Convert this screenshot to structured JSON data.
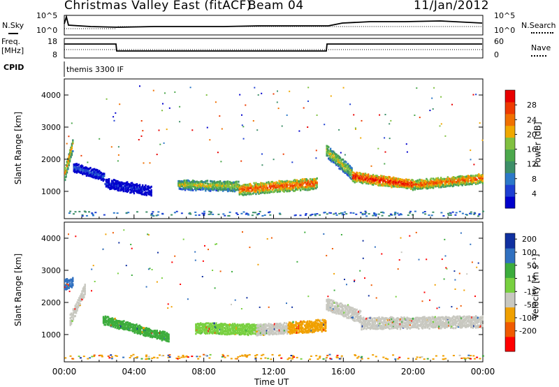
{
  "header": {
    "title": "Christmas Valley East (fitACF)",
    "beam": "Beam 04",
    "date": "11/Jan/2012"
  },
  "strips": {
    "nsky": {
      "label": "N.Sky",
      "ticks_left": [
        "10^5",
        "10^0"
      ],
      "ticks_right": [
        "10^5",
        "10^0"
      ],
      "right_label": "N.Search"
    },
    "freq": {
      "label_line1": "Freq.",
      "label_line2": "[MHz]",
      "ticks_left": [
        "18",
        "8"
      ],
      "ticks_right": [
        "60",
        "0"
      ],
      "right_label": "Nave"
    },
    "cpid": {
      "label": "CPID",
      "value": "themis 3300 IF"
    }
  },
  "chart_data": [
    {
      "type": "heatmap",
      "panel": "power",
      "ylabel": "Slant Range [km]",
      "ylim": [
        150,
        4500
      ],
      "yticks": [
        "4000",
        "3000",
        "2000",
        "1000"
      ],
      "xlim_hours": [
        0,
        24
      ],
      "colorbar": {
        "label": "Power [dB]",
        "ticks": [
          "28",
          "24",
          "20",
          "16",
          "12",
          "8",
          "4"
        ],
        "colors": [
          "#0000cc",
          "#1e3fd2",
          "#2c78c8",
          "#3d8f68",
          "#4ca84c",
          "#80c040",
          "#f0a800",
          "#f07000",
          "#ee3a00",
          "#e80000"
        ]
      },
      "bands": [
        {
          "x": [
            0,
            0.5
          ],
          "center": [
            1600,
            2600
          ],
          "width": 400,
          "level": 7
        },
        {
          "x": [
            0.5,
            2.3
          ],
          "center": [
            1800,
            1500
          ],
          "width": 260,
          "level": 2
        },
        {
          "x": [
            2.3,
            5.0
          ],
          "center": [
            1300,
            1050
          ],
          "width": 300,
          "level": 1
        },
        {
          "x": [
            6.5,
            10
          ],
          "center": [
            1250,
            1200
          ],
          "width": 300,
          "level": 6
        },
        {
          "x": [
            10,
            14.5
          ],
          "center": [
            1100,
            1300
          ],
          "width": 340,
          "level": 8
        },
        {
          "x": [
            15,
            16.5
          ],
          "center": [
            2300,
            1600
          ],
          "width": 380,
          "level": 6
        },
        {
          "x": [
            16.5,
            20
          ],
          "center": [
            1500,
            1250
          ],
          "width": 300,
          "level": 9
        },
        {
          "x": [
            20,
            24
          ],
          "center": [
            1250,
            1450
          ],
          "width": 280,
          "level": 8
        }
      ]
    },
    {
      "type": "heatmap",
      "panel": "velocity",
      "ylabel": "Slant Range [km]",
      "ylim": [
        150,
        4500
      ],
      "yticks": [
        "4000",
        "3000",
        "2000",
        "1000"
      ],
      "xlim_hours": [
        0,
        24
      ],
      "colorbar": {
        "label": "Velocity [m s⁻¹]",
        "ticks": [
          "200",
          "100",
          "50",
          "15",
          "-15",
          "-50",
          "-100",
          "-200"
        ],
        "colors": [
          "#ff0000",
          "#f05a00",
          "#f0a000",
          "#c8c8c0",
          "#78d040",
          "#3cac3c",
          "#3070c0",
          "#1030a0"
        ]
      },
      "bands": [
        {
          "x": [
            0,
            0.5
          ],
          "center": [
            2600,
            2700
          ],
          "width": 300,
          "color": "#3070c0"
        },
        {
          "x": [
            0.3,
            1.2
          ],
          "center": [
            1500,
            2500
          ],
          "width": 350,
          "color": "#c8c8c0"
        },
        {
          "x": [
            2.2,
            6.0
          ],
          "center": [
            1500,
            950
          ],
          "width": 260,
          "color": "#3cac3c"
        },
        {
          "x": [
            7.5,
            11.5
          ],
          "center": [
            1250,
            1200
          ],
          "width": 330,
          "color": "#78d040"
        },
        {
          "x": [
            11,
            12.8
          ],
          "center": [
            1200,
            1250
          ],
          "width": 330,
          "color": "#c8c8c0"
        },
        {
          "x": [
            12.8,
            15
          ],
          "center": [
            1250,
            1350
          ],
          "width": 360,
          "color": "#f0a000"
        },
        {
          "x": [
            15,
            17
          ],
          "center": [
            2000,
            1600
          ],
          "width": 380,
          "color": "#c8c8c0"
        },
        {
          "x": [
            17,
            24
          ],
          "center": [
            1400,
            1450
          ],
          "width": 360,
          "color": "#c8c8c0"
        }
      ]
    }
  ],
  "x_axis": {
    "ticks": [
      "00:00",
      "04:00",
      "08:00",
      "12:00",
      "16:00",
      "20:00",
      "00:00"
    ],
    "label": "Time UT"
  }
}
